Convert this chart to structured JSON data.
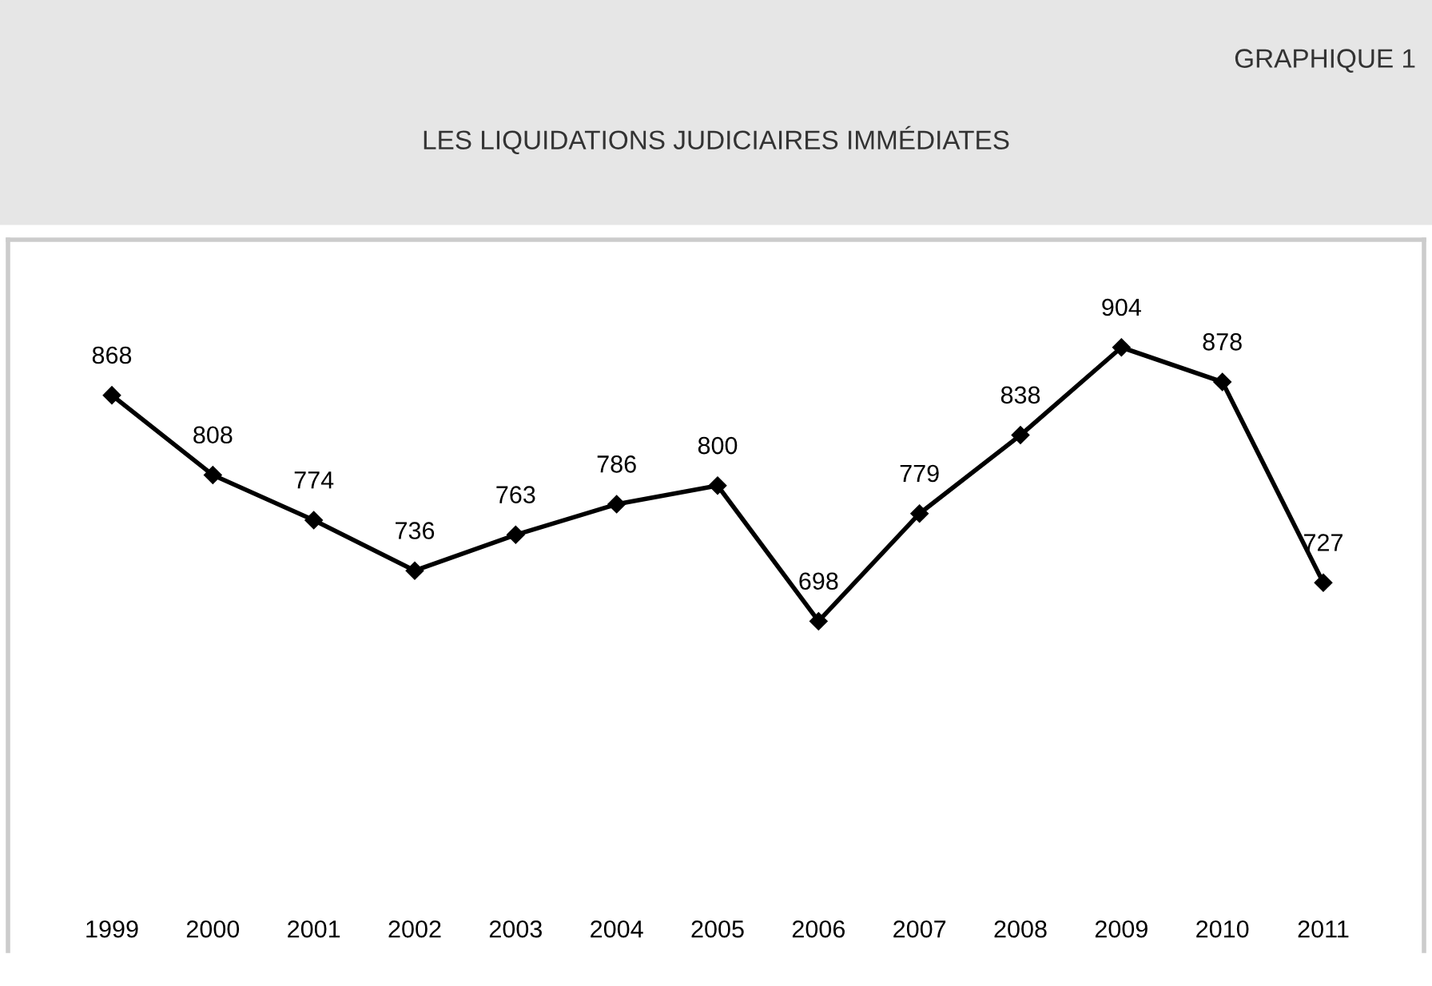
{
  "chart_data": {
    "type": "line",
    "title": "LES LIQUIDATIONS JUDICIAIRES IMMÉDIATES",
    "subtitle": "GRAPHIQUE 1",
    "categories": [
      "1999",
      "2000",
      "2001",
      "2002",
      "2003",
      "2004",
      "2005",
      "2006",
      "2007",
      "2008",
      "2009",
      "2010",
      "2011"
    ],
    "series": [
      {
        "color": "#000000",
        "values": [
          868,
          808,
          774,
          736,
          763,
          786,
          800,
          698,
          779,
          838,
          904,
          878,
          727
        ]
      }
    ],
    "ylim": [
      450,
      985
    ],
    "tick_labels": "x",
    "data_labels": true,
    "marker": "diamond",
    "line_style": "solid"
  }
}
